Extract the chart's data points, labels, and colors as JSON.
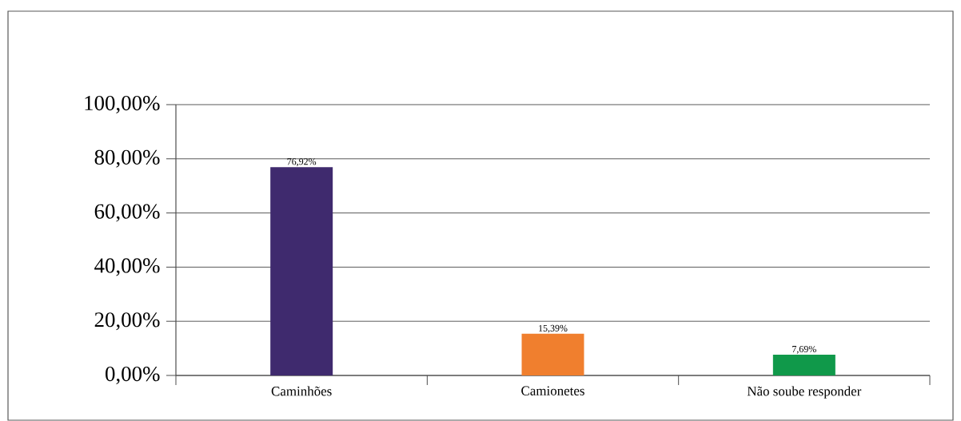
{
  "chart_data": {
    "type": "bar",
    "categories": [
      "Caminhões",
      "Camionetes",
      "Não soube responder"
    ],
    "values": [
      76.92,
      15.39,
      7.69
    ],
    "colors": [
      "#3f2a6e",
      "#f07f2e",
      "#10994a"
    ],
    "value_labels": [
      "76,92%",
      "15,39%",
      "7,69%"
    ],
    "ylim": [
      0,
      100
    ],
    "yticks": [
      {
        "value": 0,
        "label": "0,00%"
      },
      {
        "value": 20,
        "label": "20,00%"
      },
      {
        "value": 40,
        "label": "40,00%"
      },
      {
        "value": 60,
        "label": "60,00%"
      },
      {
        "value": 80,
        "label": "80,00%"
      },
      {
        "value": 100,
        "label": "100,00%"
      }
    ],
    "grid": "y"
  }
}
